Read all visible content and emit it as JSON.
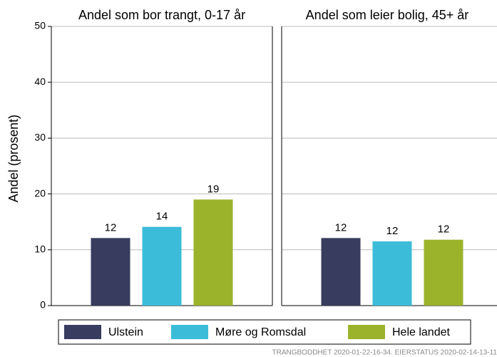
{
  "chart_data": [
    {
      "type": "bar",
      "title": "Andel som bor trangt, 0-17 år",
      "y_label": "Andel (prosent)",
      "values": [
        12.1,
        14.1,
        19
      ],
      "value_labels": [
        "12",
        "14",
        "19"
      ],
      "ylim": [
        0,
        50
      ],
      "yticks": [
        0,
        10,
        20,
        30,
        40,
        50
      ],
      "grid": true
    },
    {
      "type": "bar",
      "title": "Andel som leier bolig, 45+ år",
      "values": [
        12.1,
        11.5,
        11.8
      ],
      "value_labels": [
        "12",
        "12",
        "12"
      ],
      "ylim": [
        0,
        50
      ],
      "yticks": [
        0,
        10,
        20,
        30,
        40,
        50
      ],
      "grid": true
    }
  ],
  "legend": [
    {
      "name": "Ulstein",
      "color": "#383c5e"
    },
    {
      "name": "Møre og Romsdal",
      "color": "#3bbcd9"
    },
    {
      "name": "Hele landet",
      "color": "#9bb32b"
    }
  ],
  "caption": "TRANGBODDHET  2020-01-22-16-34. EIERSTATUS  2020-02-14-13-11"
}
